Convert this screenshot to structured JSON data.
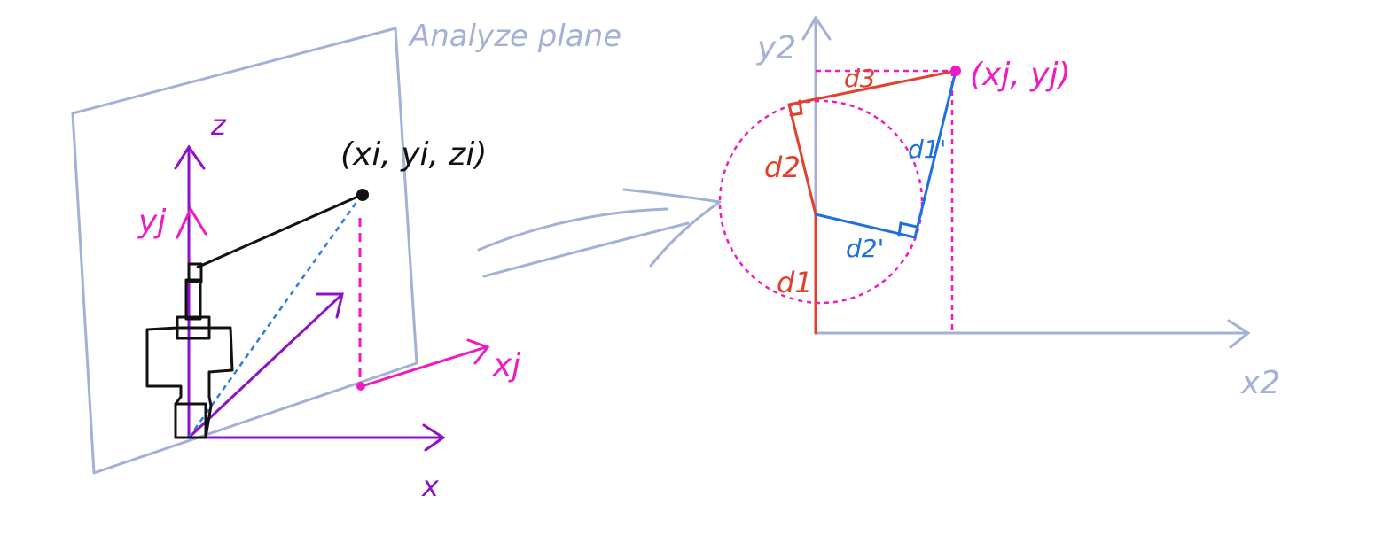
{
  "colors": {
    "plane": "#a3b1d6",
    "axis_purple": "#8e10c8",
    "magenta": "#f01ac2",
    "black": "#111111",
    "dash_blue": "#2a7de0",
    "red": "#e2402a",
    "blue": "#1f6fe0",
    "axis_blue": "#a3b1d6"
  },
  "left_figure": {
    "plane_label": "Analyze plane",
    "z_label": "z",
    "x_label": "x",
    "yj_label": "yj",
    "xj_label": "xj",
    "point_label": "(xi, yi, zi)"
  },
  "right_figure": {
    "y2_label": "y2",
    "x2_label": "x2",
    "point_label": "(xj, yj)",
    "d1_label": "d1",
    "d2_label": "d2",
    "d3_label": "d3",
    "d1_prime_label": "d1'",
    "d2_prime_label": "d2'"
  },
  "transition_arrow_icon": "big-right-arrow-icon"
}
